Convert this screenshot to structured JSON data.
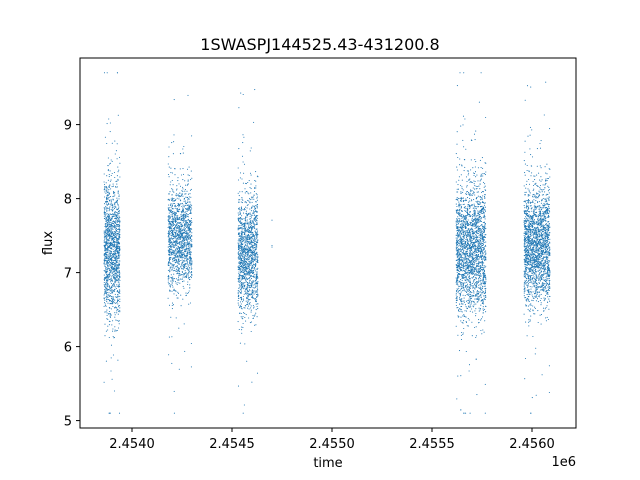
{
  "chart_data": {
    "type": "scatter",
    "title": "1SWASPJ144525.43-431200.8",
    "xlabel": "time",
    "ylabel": "flux",
    "x_offset_label": "1e6",
    "xlim": [
      2.45374,
      2.45622
    ],
    "ylim": [
      4.9,
      9.9
    ],
    "x_ticks": [
      2.454,
      2.4545,
      2.455,
      2.4555,
      2.456
    ],
    "x_tick_labels": [
      "2.4540",
      "2.4545",
      "2.4550",
      "2.4555",
      "2.4560"
    ],
    "y_ticks": [
      5,
      6,
      7,
      8,
      9
    ],
    "y_tick_labels": [
      "5",
      "6",
      "7",
      "8",
      "9"
    ],
    "grid": false,
    "marker_color": "#1f77b4",
    "clusters": [
      {
        "x_start": 2.45386,
        "x_end": 2.45394,
        "flux_center": 7.3,
        "flux_spread": 0.45,
        "count": 1400
      },
      {
        "x_start": 2.45418,
        "x_end": 2.4543,
        "flux_center": 7.45,
        "flux_spread": 0.35,
        "count": 1400
      },
      {
        "x_start": 2.45453,
        "x_end": 2.45463,
        "flux_center": 7.25,
        "flux_spread": 0.4,
        "count": 1400
      },
      {
        "x_start": 2.4547,
        "x_end": 2.4547,
        "flux_center": 7.3,
        "flux_spread": 0.15,
        "count": 3
      },
      {
        "x_start": 2.45562,
        "x_end": 2.45577,
        "flux_center": 7.3,
        "flux_spread": 0.45,
        "count": 2200
      },
      {
        "x_start": 2.45596,
        "x_end": 2.45609,
        "flux_center": 7.35,
        "flux_spread": 0.4,
        "count": 2000
      }
    ]
  }
}
